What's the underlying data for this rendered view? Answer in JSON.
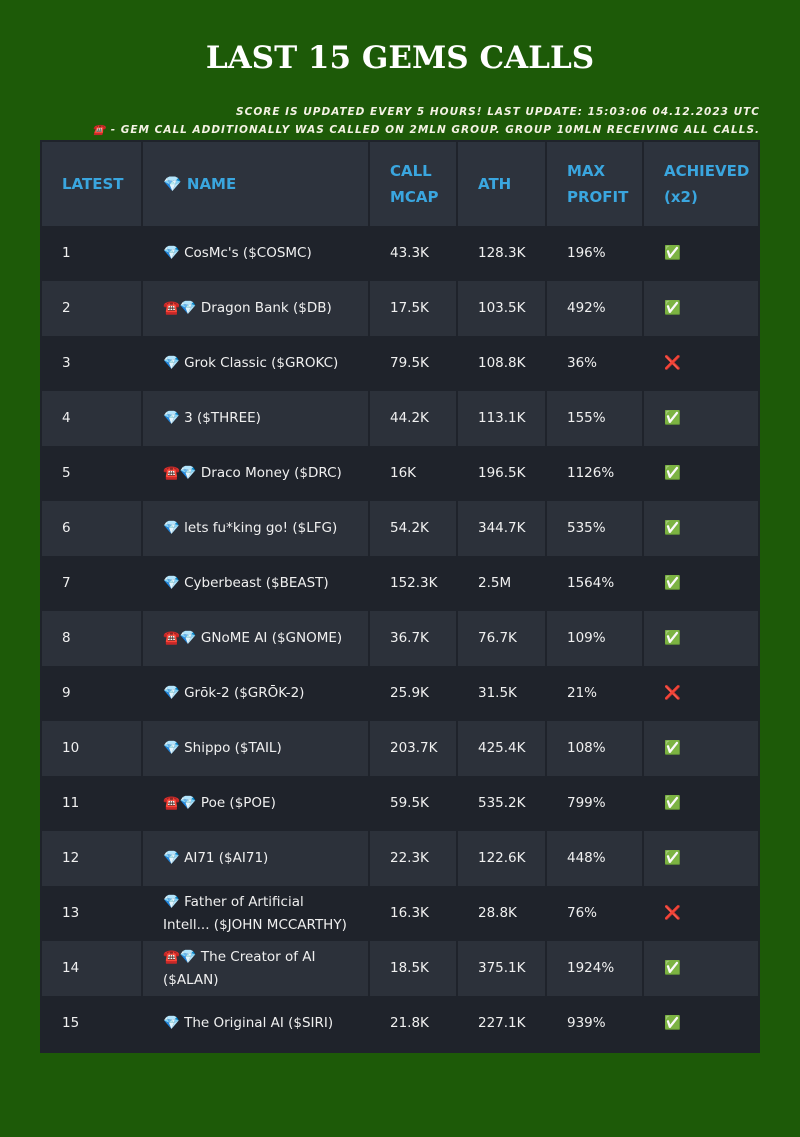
{
  "title": "LAST 15 GEMS CALLS",
  "notes": [
    "SCORE IS UPDATED EVERY 5 HOURS! LAST UPDATE: 15:03:06 04.12.2023 UTC",
    "☎️ - GEM CALL ADDITIONALLY WAS CALLED ON 2MLN GROUP. GROUP 10MLN RECEIVING ALL CALLS."
  ],
  "table": {
    "columns": [
      "LATEST",
      "💎 NAME",
      "CALL MCAP",
      "ATH",
      "MAX PROFIT",
      "ACHIEVED (x2)"
    ],
    "rows": [
      [
        "1",
        "💎 CosMc's ($COSMC)",
        "43.3K",
        "128.3K",
        "196%",
        "✅"
      ],
      [
        "2",
        "☎️💎 Dragon Bank ($DB)",
        "17.5K",
        "103.5K",
        "492%",
        "✅"
      ],
      [
        "3",
        "💎 Grok Classic ($GROKC)",
        "79.5K",
        "108.8K",
        "36%",
        "❌"
      ],
      [
        "4",
        "💎 3 ($THREE)",
        "44.2K",
        "113.1K",
        "155%",
        "✅"
      ],
      [
        "5",
        "☎️💎 Draco Money ($DRC)",
        "16K",
        "196.5K",
        "1126%",
        "✅"
      ],
      [
        "6",
        "💎 lets fu*king go! ($LFG)",
        "54.2K",
        "344.7K",
        "535%",
        "✅"
      ],
      [
        "7",
        "💎 Cyberbeast ($BEAST)",
        "152.3K",
        "2.5M",
        "1564%",
        "✅"
      ],
      [
        "8",
        "☎️💎 GNoME AI ($GNOME)",
        "36.7K",
        "76.7K",
        "109%",
        "✅"
      ],
      [
        "9",
        "💎 Grōk-2 ($GRŌK-2)",
        "25.9K",
        "31.5K",
        "21%",
        "❌"
      ],
      [
        "10",
        "💎 Shippo ($TAIL)",
        "203.7K",
        "425.4K",
        "108%",
        "✅"
      ],
      [
        "11",
        "☎️💎 Poe ($POE)",
        "59.5K",
        "535.2K",
        "799%",
        "✅"
      ],
      [
        "12",
        "💎 AI71 ($AI71)",
        "22.3K",
        "122.6K",
        "448%",
        "✅"
      ],
      [
        "13",
        "💎 Father of Artificial Intell... ($JOHN MCCARTHY)",
        "16.3K",
        "28.8K",
        "76%",
        "❌"
      ],
      [
        "14",
        "☎️💎 The Creator of AI ($ALAN)",
        "18.5K",
        "375.1K",
        "1924%",
        "✅"
      ],
      [
        "15",
        "💎 The Original AI ($SIRI)",
        "21.8K",
        "227.1K",
        "939%",
        "✅"
      ]
    ]
  }
}
